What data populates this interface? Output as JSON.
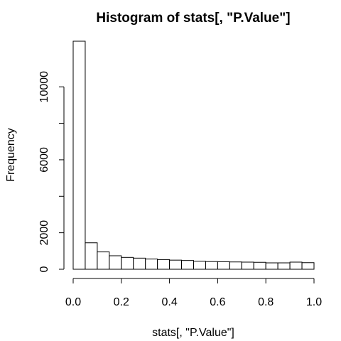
{
  "chart_data": {
    "type": "bar",
    "title": "Histogram of stats[, \"P.Value\"]",
    "xlabel": "stats[, \"P.Value\"]",
    "ylabel": "Frequency",
    "bin_width": 0.05,
    "x_breaks": [
      0.0,
      0.05,
      0.1,
      0.15,
      0.2,
      0.25,
      0.3,
      0.35,
      0.4,
      0.45,
      0.5,
      0.55,
      0.6,
      0.65,
      0.7,
      0.75,
      0.8,
      0.85,
      0.9,
      0.95,
      1.0
    ],
    "values": [
      12500,
      1450,
      950,
      740,
      650,
      610,
      560,
      530,
      500,
      480,
      440,
      420,
      410,
      400,
      390,
      380,
      350,
      350,
      390,
      360
    ],
    "xlim": [
      0,
      1
    ],
    "ylim": [
      0,
      12500
    ],
    "x_ticks": [
      0.0,
      0.2,
      0.4,
      0.6,
      0.8,
      1.0
    ],
    "x_tick_labels": [
      "0.0",
      "0.2",
      "0.4",
      "0.6",
      "0.8",
      "1.0"
    ],
    "y_ticks": [
      0,
      2000,
      4000,
      6000,
      8000,
      10000
    ],
    "y_tick_labels": [
      "0",
      "2000",
      "",
      "6000",
      "",
      "10000"
    ],
    "grid": false
  }
}
